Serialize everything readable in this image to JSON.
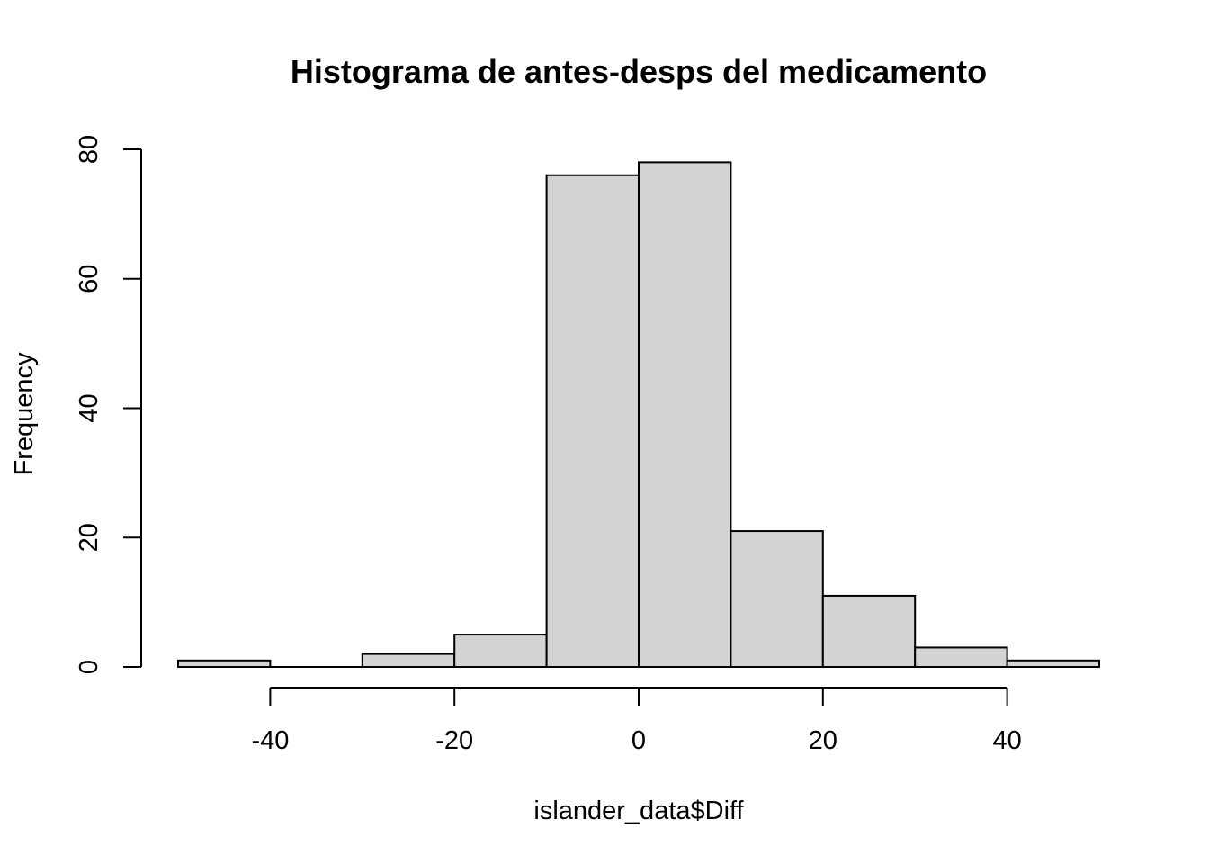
{
  "chart_data": {
    "type": "bar",
    "title": "Histograma de antes-desps del medicamento",
    "xlabel": "islander_data$Diff",
    "ylabel": "Frequency",
    "bins": [
      {
        "x0": -50,
        "x1": -40,
        "count": 1
      },
      {
        "x0": -40,
        "x1": -30,
        "count": 0
      },
      {
        "x0": -30,
        "x1": -20,
        "count": 2
      },
      {
        "x0": -20,
        "x1": -10,
        "count": 5
      },
      {
        "x0": -10,
        "x1": 0,
        "count": 76
      },
      {
        "x0": 0,
        "x1": 10,
        "count": 78
      },
      {
        "x0": 10,
        "x1": 20,
        "count": 21
      },
      {
        "x0": 20,
        "x1": 30,
        "count": 11
      },
      {
        "x0": 30,
        "x1": 40,
        "count": 3
      },
      {
        "x0": 40,
        "x1": 50,
        "count": 1
      }
    ],
    "xlim": [
      -50,
      50
    ],
    "ylim": [
      0,
      80
    ],
    "x_ticks": [
      -40,
      -20,
      0,
      20,
      40
    ],
    "y_ticks": [
      0,
      20,
      40,
      60,
      80
    ],
    "x_tick_labels": [
      "-40",
      "-20",
      "0",
      "20",
      "40"
    ],
    "y_tick_labels": [
      "0",
      "20",
      "40",
      "60",
      "80"
    ],
    "bar_color": "#d3d3d3",
    "edge_color": "#000000",
    "grid": false
  }
}
